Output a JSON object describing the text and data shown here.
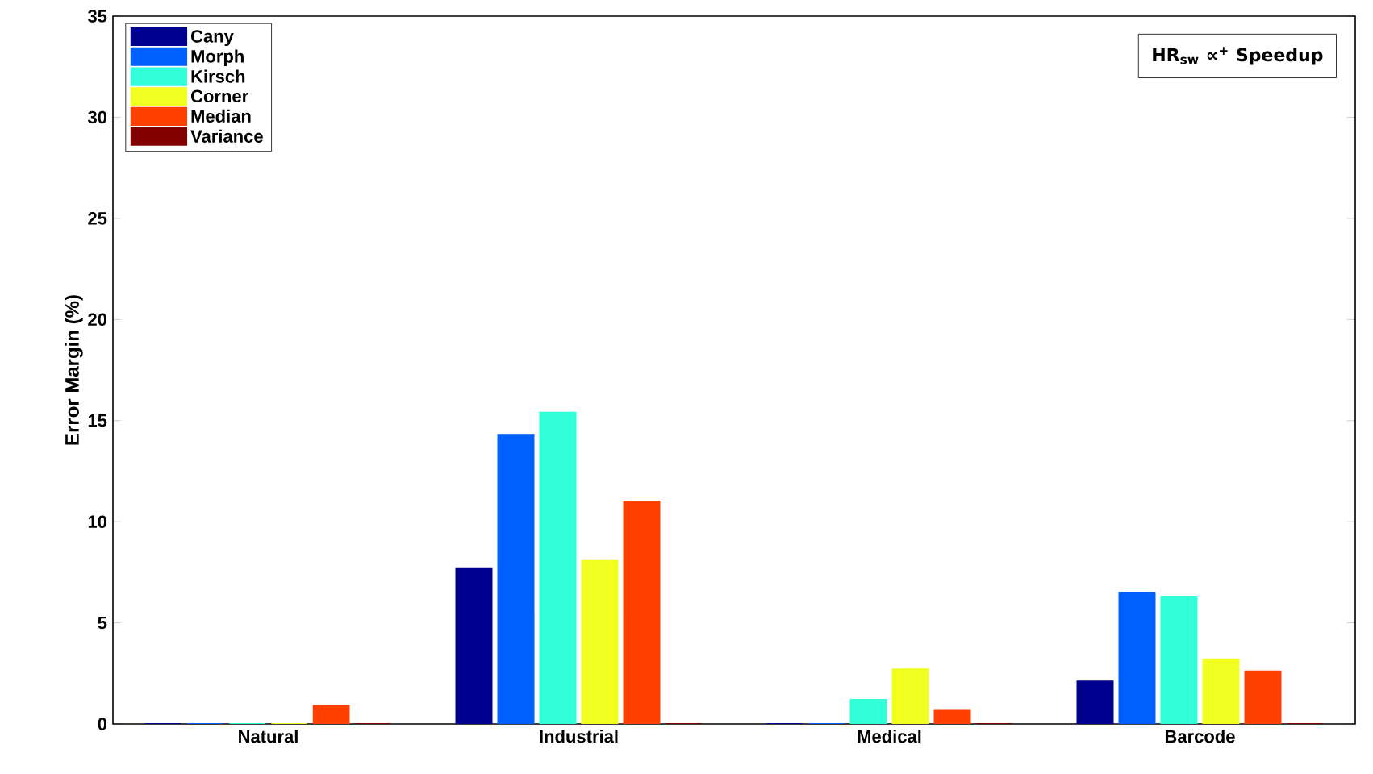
{
  "chart_data": {
    "type": "bar",
    "ylabel": "Error Margin (%)",
    "categories": [
      "Natural",
      "Industrial",
      "Medical",
      "Barcode"
    ],
    "series": [
      {
        "name": "Cany",
        "color": "#00008f",
        "values": [
          0,
          7.7,
          0,
          2.1
        ]
      },
      {
        "name": "Morph",
        "color": "#0060ff",
        "values": [
          0,
          14.3,
          0,
          6.5
        ]
      },
      {
        "name": "Kirsch",
        "color": "#30ffd8",
        "values": [
          0,
          15.4,
          1.2,
          6.3
        ]
      },
      {
        "name": "Corner",
        "color": "#f0ff20",
        "values": [
          0,
          8.1,
          2.7,
          3.2
        ]
      },
      {
        "name": "Median",
        "color": "#ff4000",
        "values": [
          0.9,
          11.0,
          0.7,
          2.6
        ]
      },
      {
        "name": "Variance",
        "color": "#800000",
        "values": [
          0,
          0,
          0,
          0
        ]
      }
    ],
    "ylim": [
      0,
      35
    ],
    "yticks": [
      0,
      5,
      10,
      15,
      20,
      25,
      30,
      35
    ],
    "legend": "top left",
    "grid": false,
    "annotations": [
      "HR$_{sw}$ ∝$^{+}$ Speedup"
    ]
  }
}
